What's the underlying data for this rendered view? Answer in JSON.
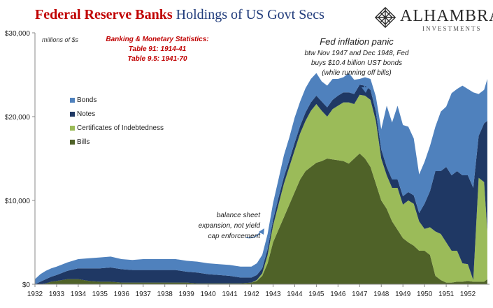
{
  "title": {
    "part1": "Federal Reserve Banks",
    "part2": "Holdings of US Govt Secs"
  },
  "logo": {
    "name": "ALHAMBRA",
    "sub": "INVESTMENTS"
  },
  "unit_note": "millions of $s",
  "source": {
    "line1": "Banking & Monetary Statistics:",
    "line2": "Table 91: 1914-41",
    "line3": "Table 9.5: 1941-70"
  },
  "annotations": {
    "panic_title": "Fed inflation panic",
    "panic_line1": "btw Nov 1947 and Dec 1948, Fed",
    "panic_line2": "buys $10.4 billion UST bonds",
    "panic_line3": "(while running off bills)",
    "expansion_line1": "balance sheet",
    "expansion_line2": "expansion, not yield",
    "expansion_line3": "cap enforcement"
  },
  "colors": {
    "bonds": "#4f81bd",
    "notes": "#1f3864",
    "certificates": "#9bbb59",
    "bills": "#4f6228"
  },
  "chart_data": {
    "type": "area",
    "stacked": true,
    "title": "",
    "xlabel": "",
    "ylabel": "",
    "x": [
      1932.0,
      1932.25,
      1932.5,
      1932.75,
      1933.0,
      1933.5,
      1934.0,
      1934.5,
      1935.0,
      1935.5,
      1936.0,
      1936.5,
      1937.0,
      1937.5,
      1938.0,
      1938.5,
      1939.0,
      1939.5,
      1940.0,
      1940.5,
      1941.0,
      1941.5,
      1942.0,
      1942.25,
      1942.5,
      1942.75,
      1943.0,
      1943.25,
      1943.5,
      1943.75,
      1944.0,
      1944.25,
      1944.5,
      1944.75,
      1945.0,
      1945.25,
      1945.5,
      1945.75,
      1946.0,
      1946.25,
      1946.5,
      1946.75,
      1947.0,
      1947.25,
      1947.5,
      1947.75,
      1948.0,
      1948.25,
      1948.5,
      1948.75,
      1949.0,
      1949.25,
      1949.5,
      1949.75,
      1950.0,
      1950.25,
      1950.5,
      1950.75,
      1951.0,
      1951.25,
      1951.5,
      1951.75,
      1952.0,
      1952.25,
      1952.5,
      1952.75,
      1952.9
    ],
    "series": [
      {
        "name": "Bills",
        "values": [
          0,
          0,
          100,
          300,
          400,
          600,
          600,
          400,
          300,
          300,
          200,
          200,
          200,
          200,
          200,
          200,
          200,
          100,
          100,
          100,
          100,
          100,
          200,
          400,
          1000,
          2500,
          5000,
          6500,
          8000,
          9500,
          11000,
          12500,
          13500,
          14000,
          14500,
          14700,
          15000,
          14900,
          14800,
          14700,
          14400,
          15000,
          15600,
          15000,
          14000,
          12000,
          10000,
          9000,
          7500,
          6500,
          5500,
          5000,
          4600,
          4000,
          4000,
          3500,
          1000,
          500,
          200,
          200,
          300,
          300,
          400,
          300,
          300,
          300,
          600
        ]
      },
      {
        "name": "Certificates of Indebtedness",
        "values": [
          0,
          0,
          0,
          0,
          0,
          0,
          0,
          0,
          0,
          0,
          0,
          0,
          0,
          0,
          0,
          0,
          0,
          0,
          0,
          0,
          0,
          0,
          0,
          100,
          300,
          1000,
          2000,
          3000,
          4000,
          4500,
          5000,
          5500,
          6000,
          6700,
          7000,
          6000,
          5000,
          6000,
          6500,
          7000,
          7300,
          6500,
          7000,
          7500,
          8000,
          7500,
          5000,
          4000,
          4000,
          5000,
          4000,
          5000,
          5000,
          3500,
          2600,
          3300,
          5300,
          5500,
          4800,
          3800,
          3700,
          2200,
          2000,
          200,
          12400,
          11900,
          5700
        ]
      },
      {
        "name": "Notes",
        "values": [
          0,
          300,
          500,
          600,
          700,
          1000,
          1300,
          1500,
          1600,
          1700,
          1600,
          1500,
          1500,
          1500,
          1500,
          1500,
          1300,
          1300,
          1100,
          1000,
          900,
          700,
          600,
          600,
          600,
          700,
          700,
          800,
          800,
          800,
          900,
          900,
          1000,
          1000,
          1000,
          1100,
          1100,
          1100,
          1200,
          1200,
          1200,
          1200,
          1200,
          1200,
          1200,
          1100,
          1100,
          1000,
          1000,
          1000,
          1000,
          1000,
          1000,
          1000,
          3000,
          4300,
          7200,
          7500,
          9000,
          9000,
          9500,
          10500,
          10600,
          11000,
          5000,
          7000,
          13200
        ]
      },
      {
        "name": "Bonds",
        "values": [
          600,
          900,
          1000,
          1000,
          1000,
          1000,
          1100,
          1200,
          1300,
          1300,
          1200,
          1200,
          1300,
          1300,
          1300,
          1300,
          1300,
          1300,
          1300,
          1300,
          1300,
          1300,
          1300,
          1400,
          1600,
          1800,
          2000,
          2200,
          2600,
          2700,
          3000,
          2900,
          2900,
          2800,
          2700,
          2400,
          2600,
          2500,
          2000,
          1800,
          2300,
          1700,
          700,
          1000,
          1300,
          1800,
          2400,
          7300,
          6800,
          8800,
          8500,
          7800,
          6800,
          4600,
          5000,
          5400,
          5300,
          7100,
          7200,
          9800,
          9800,
          10700,
          10300,
          11400,
          5000,
          4000,
          5000
        ]
      }
    ],
    "x_tick_labels": [
      "1932",
      "1933",
      "1934",
      "1935",
      "1936",
      "1937",
      "1938",
      "1939",
      "1940",
      "1941",
      "1942",
      "1943",
      "1944",
      "1945",
      "1946",
      "1947",
      "1948",
      "1949",
      "1950",
      "1951",
      "1952"
    ],
    "y_tick_labels": [
      "$0",
      "$10,000",
      "$20,000",
      "$30,000"
    ],
    "xlim": [
      1932,
      1953
    ],
    "ylim": [
      0,
      30000
    ],
    "grid": false,
    "legend": "upper-left"
  }
}
